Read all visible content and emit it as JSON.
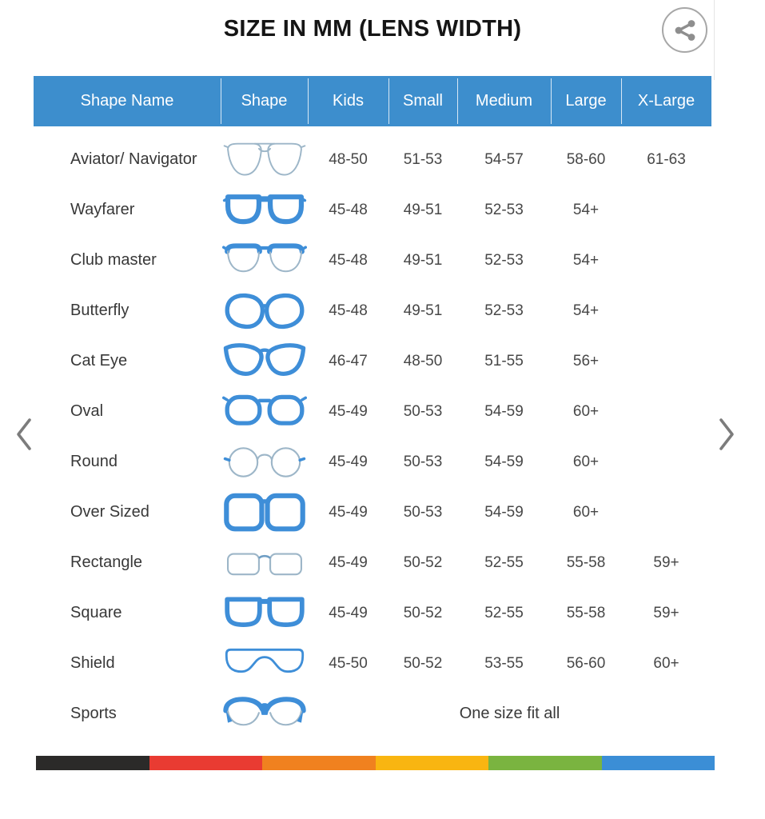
{
  "page": {
    "title": "SIZE IN MM (LENS WIDTH)"
  },
  "icons": {
    "share": "share-icon",
    "prev": "chevron-left-icon",
    "next": "chevron-right-icon"
  },
  "colors": {
    "header_bg": "#3d8ecd",
    "frame_blue": "#3e8ed8",
    "thin_outline": "#9db6c8",
    "chevron_gray": "#7c7c7c"
  },
  "table": {
    "headers": [
      "Shape Name",
      "Shape",
      "Kids",
      "Small",
      "Medium",
      "Large",
      "X-Large"
    ],
    "rows": [
      {
        "name": "Aviator/ Navigator",
        "icon": "aviator",
        "values": [
          "48-50",
          "51-53",
          "54-57",
          "58-60",
          "61-63"
        ]
      },
      {
        "name": "Wayfarer",
        "icon": "wayfarer",
        "values": [
          "45-48",
          "49-51",
          "52-53",
          "54+",
          ""
        ]
      },
      {
        "name": "Club master",
        "icon": "clubmaster",
        "values": [
          "45-48",
          "49-51",
          "52-53",
          "54+",
          ""
        ]
      },
      {
        "name": "Butterfly",
        "icon": "butterfly",
        "values": [
          "45-48",
          "49-51",
          "52-53",
          "54+",
          ""
        ]
      },
      {
        "name": "Cat Eye",
        "icon": "cateye",
        "values": [
          "46-47",
          "48-50",
          "51-55",
          "56+",
          ""
        ]
      },
      {
        "name": "Oval",
        "icon": "oval",
        "values": [
          "45-49",
          "50-53",
          "54-59",
          "60+",
          ""
        ]
      },
      {
        "name": "Round",
        "icon": "round",
        "values": [
          "45-49",
          "50-53",
          "54-59",
          "60+",
          ""
        ]
      },
      {
        "name": "Over Sized",
        "icon": "oversized",
        "values": [
          "45-49",
          "50-53",
          "54-59",
          "60+",
          ""
        ]
      },
      {
        "name": "Rectangle",
        "icon": "rectangle",
        "values": [
          "45-49",
          "50-52",
          "52-55",
          "55-58",
          "59+"
        ]
      },
      {
        "name": "Square",
        "icon": "square",
        "values": [
          "45-49",
          "50-52",
          "52-55",
          "55-58",
          "59+"
        ]
      },
      {
        "name": "Shield",
        "icon": "shield",
        "values": [
          "45-50",
          "50-52",
          "53-55",
          "56-60",
          "60+"
        ]
      },
      {
        "name": "Sports",
        "icon": "sports",
        "span_text": "One size fit all"
      }
    ]
  },
  "footer_stripe": {
    "colors": [
      "#2b2a29",
      "#e93b32",
      "#f0811f",
      "#f9b511",
      "#7ab440",
      "#3b8ed6"
    ]
  }
}
